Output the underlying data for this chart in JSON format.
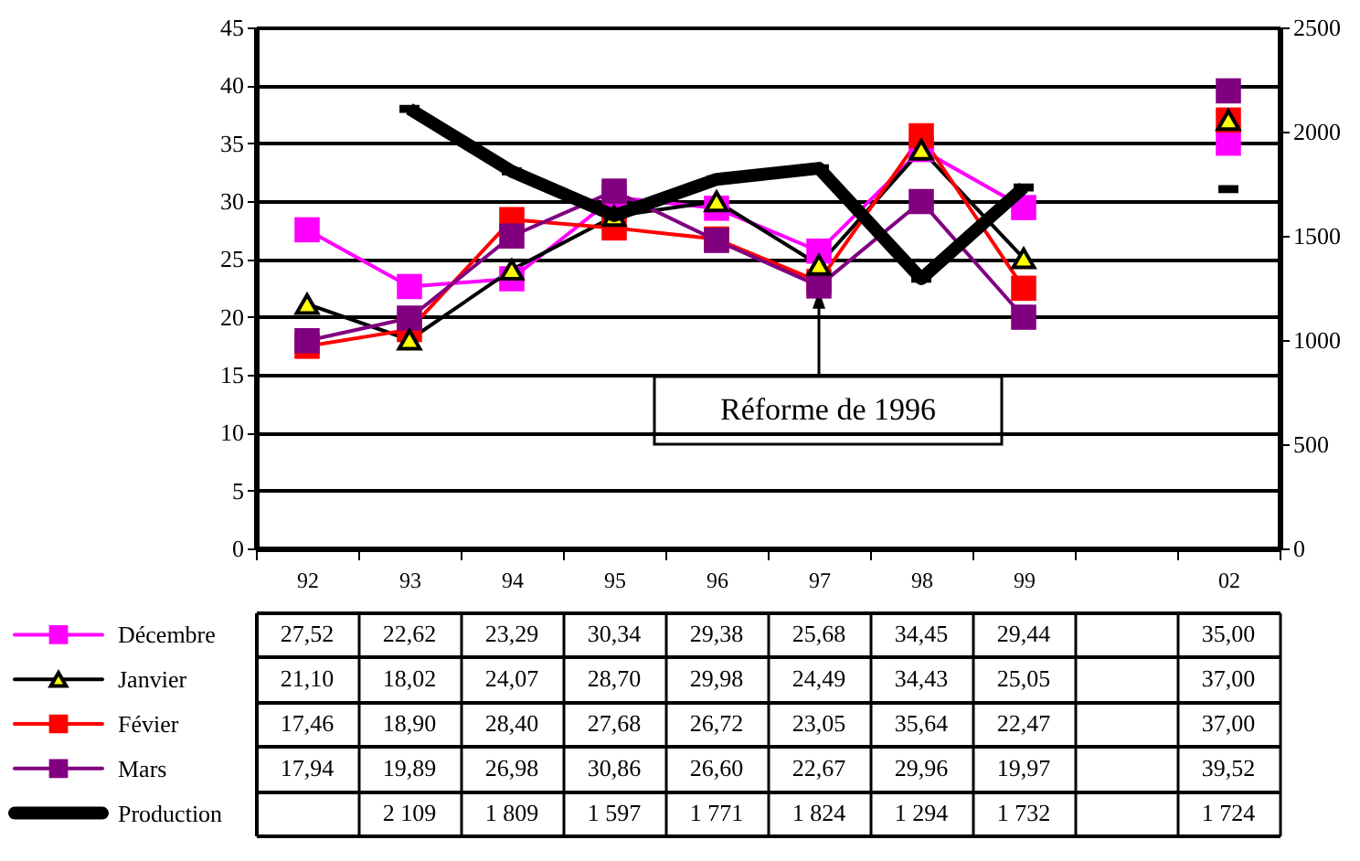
{
  "chart_data": {
    "type": "line",
    "categories": [
      "92",
      "93",
      "94",
      "95",
      "96",
      "97",
      "98",
      "99",
      null,
      "02"
    ],
    "series": [
      {
        "name": "Décembre",
        "color": "#ff00ff",
        "marker": "square",
        "values": [
          27.52,
          22.62,
          23.29,
          30.34,
          29.38,
          25.68,
          34.45,
          29.44,
          null,
          35.0
        ],
        "value_labels": [
          "27,52",
          "22,62",
          "23,29",
          "30,34",
          "29,38",
          "25,68",
          "34,45",
          "29,44",
          null,
          "35,00"
        ]
      },
      {
        "name": "Janvier",
        "color": "#000000",
        "marker": "triangle",
        "values": [
          21.1,
          18.02,
          24.07,
          28.7,
          29.98,
          24.49,
          34.43,
          25.05,
          null,
          37.0
        ],
        "value_labels": [
          "21,10",
          "18,02",
          "24,07",
          "28,70",
          "29,98",
          "24,49",
          "34,43",
          "25,05",
          null,
          "37,00"
        ]
      },
      {
        "name": "Févier",
        "color": "#ff0000",
        "marker": "square",
        "values": [
          17.46,
          18.9,
          28.4,
          27.68,
          26.72,
          23.05,
          35.64,
          22.47,
          null,
          37.0
        ],
        "value_labels": [
          "17,46",
          "18,90",
          "28,40",
          "27,68",
          "26,72",
          "23,05",
          "35,64",
          "22,47",
          null,
          "37,00"
        ]
      },
      {
        "name": "Mars",
        "color": "#800080",
        "marker": "square",
        "values": [
          17.94,
          19.89,
          26.98,
          30.86,
          26.6,
          22.67,
          29.96,
          19.97,
          null,
          39.52
        ],
        "value_labels": [
          "17,94",
          "19,89",
          "26,98",
          "30,86",
          "26,60",
          "22,67",
          "29,96",
          "19,97",
          null,
          "39,52"
        ]
      },
      {
        "name": "Production",
        "color": "#000000",
        "marker": "square",
        "axis": "y2",
        "values": [
          null,
          2109,
          1809,
          1597,
          1771,
          1824,
          1294,
          1732,
          null,
          1724
        ],
        "value_labels": [
          null,
          "2 109",
          "1 809",
          "1 597",
          "1 771",
          "1 824",
          "1 294",
          "1 732",
          null,
          "1 724"
        ]
      }
    ],
    "ylim": [
      0,
      45
    ],
    "yticks": [
      0,
      5,
      10,
      15,
      20,
      25,
      30,
      35,
      40,
      45
    ],
    "y2lim": [
      0,
      2500
    ],
    "y2ticks": [
      0,
      500,
      1000,
      1500,
      2000,
      2500
    ],
    "grid": "y",
    "legend": "bottom left",
    "annotations": [
      {
        "text": "Réforme de 1996",
        "x": "97",
        "y": 21.5
      }
    ]
  }
}
